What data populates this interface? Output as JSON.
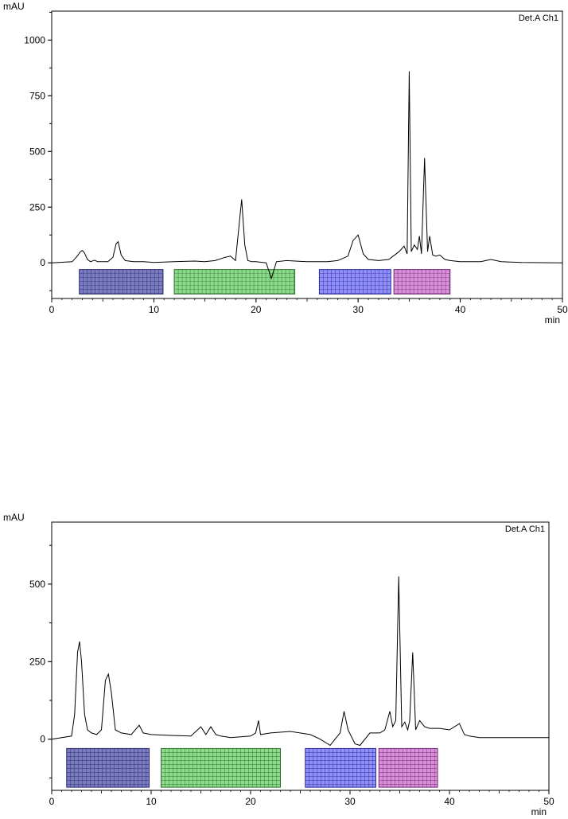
{
  "chart_data": [
    {
      "type": "line",
      "ylabel": "mAU",
      "xlabel": "min",
      "detector_label": "Det.A Ch1",
      "xlim": [
        0,
        50
      ],
      "ylim": [
        -160,
        1130
      ],
      "x_ticks": [
        0,
        10,
        20,
        30,
        40,
        50
      ],
      "y_ticks": [
        0,
        250,
        500,
        750,
        1000
      ],
      "grid": false,
      "series": [
        {
          "x": [
            0,
            2,
            2.5,
            2.8,
            3.0,
            3.2,
            3.5,
            3.8,
            4.2,
            4.5,
            5.5,
            6.0,
            6.3,
            6.5,
            6.8,
            7.2,
            8,
            9,
            10,
            12,
            14,
            15,
            16,
            17,
            17.5,
            18.0,
            18.3,
            18.6,
            18.9,
            19.2,
            19.6,
            20,
            21,
            21.5,
            22,
            23,
            25,
            27,
            28,
            29,
            29.5,
            30.0,
            30.5,
            31,
            32,
            33,
            34,
            34.5,
            34.8,
            35.0,
            35.2,
            35.5,
            35.8,
            36.0,
            36.2,
            36.5,
            36.8,
            37.0,
            37.3,
            37.6,
            38,
            38.5,
            39,
            40,
            42,
            43,
            44,
            46,
            50
          ],
          "y": [
            0,
            5,
            30,
            50,
            55,
            45,
            15,
            5,
            12,
            5,
            5,
            25,
            85,
            95,
            35,
            10,
            5,
            5,
            2,
            5,
            8,
            5,
            10,
            25,
            30,
            10,
            150,
            285,
            80,
            10,
            5,
            5,
            0,
            -70,
            5,
            10,
            5,
            5,
            10,
            30,
            100,
            125,
            40,
            15,
            10,
            15,
            50,
            75,
            40,
            860,
            50,
            80,
            60,
            120,
            40,
            470,
            50,
            120,
            35,
            30,
            35,
            15,
            10,
            5,
            5,
            15,
            5,
            2,
            0
          ]
        }
      ],
      "fraction_bands": [
        {
          "x_start": 2.7,
          "x_end": 10.9,
          "color": "#7b7bbf",
          "line": "#2a2a6e"
        },
        {
          "x_start": 12.0,
          "x_end": 23.8,
          "color": "#8bdb8b",
          "line": "#2f6e2f"
        },
        {
          "x_start": 26.2,
          "x_end": 33.2,
          "color": "#8f8ff7",
          "line": "#2a2aa0"
        },
        {
          "x_start": 33.5,
          "x_end": 39.0,
          "color": "#d98fd9",
          "line": "#6e2a6e"
        }
      ]
    },
    {
      "type": "line",
      "ylabel": "mAU",
      "xlabel": "min",
      "detector_label": "Det.A Ch1",
      "xlim": [
        0,
        50
      ],
      "ylim": [
        -165,
        700
      ],
      "x_ticks": [
        0,
        10,
        20,
        30,
        40,
        50
      ],
      "y_ticks": [
        0,
        250,
        500
      ],
      "grid": false,
      "series": [
        {
          "x": [
            0,
            2,
            2.3,
            2.6,
            2.8,
            3.0,
            3.3,
            3.6,
            4.0,
            4.5,
            5.0,
            5.4,
            5.7,
            6.0,
            6.4,
            7.0,
            8,
            8.8,
            9.2,
            10,
            12,
            14,
            15,
            15.5,
            16,
            16.5,
            17,
            18,
            20,
            20.5,
            20.8,
            21,
            22,
            24,
            26,
            27,
            28,
            28.5,
            29,
            29.4,
            29.8,
            30.5,
            31,
            32,
            33,
            33.5,
            34.0,
            34.3,
            34.6,
            34.9,
            35.2,
            35.5,
            35.8,
            36.0,
            36.3,
            36.6,
            37.0,
            37.5,
            38,
            39,
            40,
            41.0,
            41.5,
            42,
            43,
            45,
            50
          ],
          "y": [
            0,
            10,
            80,
            280,
            315,
            250,
            80,
            30,
            20,
            15,
            30,
            190,
            210,
            150,
            30,
            20,
            15,
            45,
            20,
            15,
            12,
            10,
            40,
            15,
            40,
            15,
            10,
            5,
            10,
            20,
            60,
            15,
            20,
            25,
            15,
            0,
            -20,
            0,
            20,
            90,
            30,
            -15,
            -20,
            20,
            20,
            30,
            90,
            40,
            60,
            525,
            40,
            55,
            30,
            60,
            280,
            30,
            60,
            40,
            35,
            35,
            30,
            50,
            15,
            10,
            5,
            5,
            5
          ]
        }
      ],
      "fraction_bands": [
        {
          "x_start": 1.5,
          "x_end": 9.8,
          "color": "#7b7bbf",
          "line": "#2a2a6e"
        },
        {
          "x_start": 11.0,
          "x_end": 23.0,
          "color": "#8bdb8b",
          "line": "#2f6e2f"
        },
        {
          "x_start": 25.5,
          "x_end": 32.6,
          "color": "#8f8ff7",
          "line": "#2a2aa0"
        },
        {
          "x_start": 32.9,
          "x_end": 38.8,
          "color": "#d98fd9",
          "line": "#6e2a6e"
        }
      ]
    }
  ]
}
